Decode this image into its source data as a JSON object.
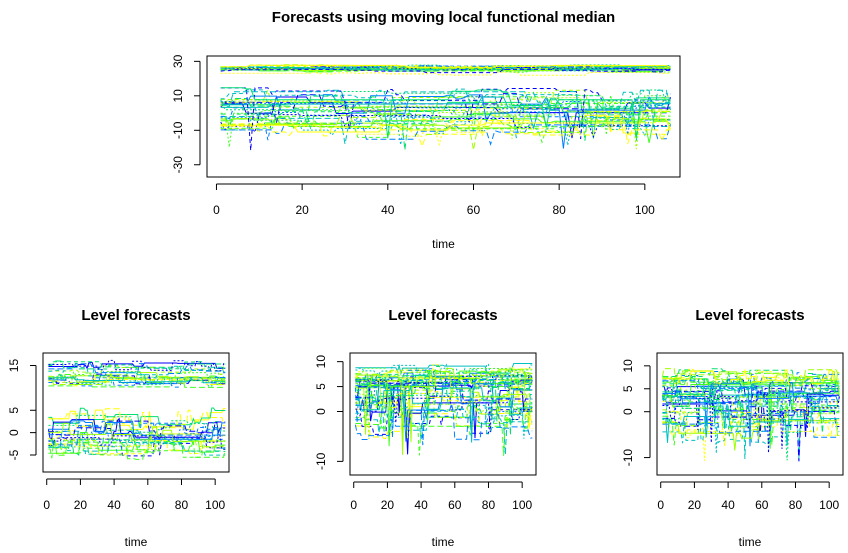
{
  "chart_data": [
    {
      "type": "line",
      "title": "Forecasts using moving local functional median",
      "xlabel": "time",
      "ylabel": "",
      "xlim": [
        0,
        106
      ],
      "ylim": [
        -35,
        31
      ],
      "xticks": [
        "0",
        "20",
        "40",
        "60",
        "80",
        "100"
      ],
      "yticks": [
        "-30",
        "-10",
        "10",
        "30"
      ],
      "colors": [
        "#0000ff",
        "#0080ff",
        "#00c0c0",
        "#00e070",
        "#40ff20",
        "#a0ff00",
        "#ffff00"
      ],
      "bands": [
        {
          "center": 25,
          "spread": 2,
          "count": 22
        },
        {
          "center": 0,
          "spread": 10,
          "count": 34,
          "spikes": true
        }
      ]
    },
    {
      "type": "line",
      "title": "Level forecasts",
      "xlabel": "time",
      "ylabel": "",
      "xlim": [
        0,
        106
      ],
      "ylim": [
        -8,
        17
      ],
      "xticks": [
        "0",
        "20",
        "40",
        "60",
        "80",
        "100"
      ],
      "yticks": [
        "-5",
        "0",
        "5",
        "15"
      ],
      "bands": [
        {
          "center": 13,
          "spread": 2,
          "count": 20
        },
        {
          "center": 0,
          "spread": 4,
          "count": 24
        }
      ]
    },
    {
      "type": "line",
      "title": "Level forecasts",
      "xlabel": "time",
      "ylabel": "",
      "xlim": [
        0,
        106
      ],
      "ylim": [
        -12,
        11
      ],
      "xticks": [
        "0",
        "20",
        "40",
        "60",
        "80",
        "100"
      ],
      "yticks": [
        "-10",
        "0",
        "5",
        "10"
      ],
      "bands": [
        {
          "center": 7,
          "spread": 2,
          "count": 20
        },
        {
          "center": 2,
          "spread": 5,
          "count": 26,
          "spikes": true
        }
      ]
    },
    {
      "type": "line",
      "title": "Level forecasts",
      "xlabel": "time",
      "ylabel": "",
      "xlim": [
        0,
        106
      ],
      "ylim": [
        -13,
        12
      ],
      "xticks": [
        "0",
        "20",
        "40",
        "60",
        "80",
        "100"
      ],
      "yticks": [
        "-10",
        "0",
        "5",
        "10"
      ],
      "bands": [
        {
          "center": 5,
          "spread": 3,
          "count": 22
        },
        {
          "center": 0,
          "spread": 5,
          "count": 24,
          "spikes": true
        }
      ]
    }
  ]
}
